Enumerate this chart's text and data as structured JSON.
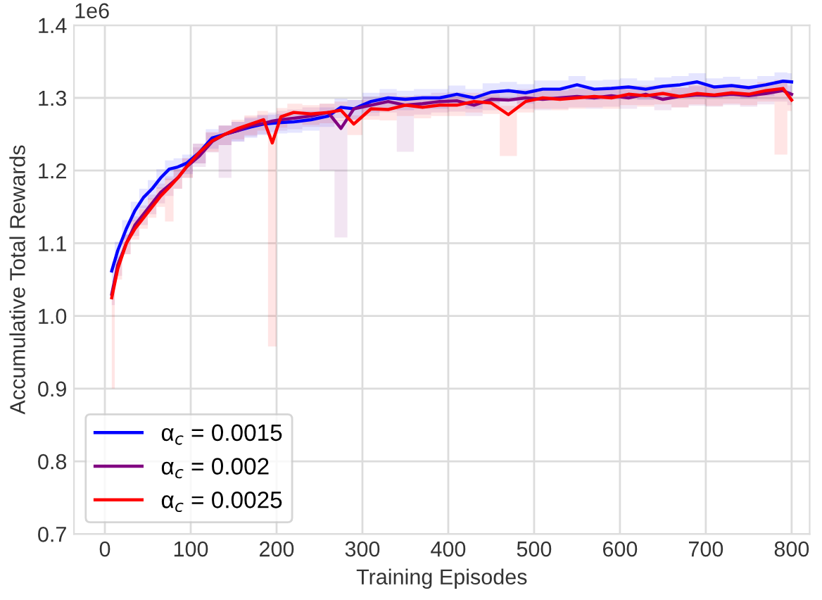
{
  "chart_data": {
    "type": "line",
    "xlabel": "Training Episodes",
    "ylabel": "Accumulative Total Rewards",
    "annotations": [
      "1e6"
    ],
    "x": [
      8,
      15,
      25,
      35,
      45,
      55,
      65,
      75,
      85,
      95,
      110,
      125,
      140,
      155,
      170,
      185,
      195,
      205,
      220,
      240,
      260,
      275,
      290,
      310,
      330,
      350,
      370,
      390,
      410,
      430,
      450,
      470,
      490,
      510,
      530,
      550,
      570,
      590,
      610,
      630,
      650,
      670,
      690,
      710,
      730,
      750,
      770,
      790,
      800
    ],
    "xlim": [
      -36,
      821
    ],
    "xticks": [
      0,
      100,
      200,
      300,
      400,
      500,
      600,
      700,
      800
    ],
    "ylim": [
      0.7,
      1.4
    ],
    "yticks": [
      0.7,
      0.8,
      0.9,
      {
        "value": 1,
        "label": "1.0"
      },
      1.1,
      1.2,
      1.3,
      1.4
    ],
    "grid": true,
    "legend": "bottom left",
    "series": [
      {
        "name": "α$_{c}$ = 0.0015",
        "color": "#0000ff",
        "values": [
          1.062,
          1.09,
          1.12,
          1.145,
          1.163,
          1.175,
          1.19,
          1.202,
          1.205,
          1.21,
          1.225,
          1.245,
          1.25,
          1.255,
          1.26,
          1.264,
          1.265,
          1.266,
          1.267,
          1.27,
          1.275,
          1.287,
          1.285,
          1.295,
          1.3,
          1.298,
          1.3,
          1.3,
          1.305,
          1.3,
          1.308,
          1.31,
          1.307,
          1.312,
          1.312,
          1.318,
          1.312,
          1.313,
          1.315,
          1.312,
          1.316,
          1.318,
          1.322,
          1.315,
          1.317,
          1.314,
          1.318,
          1.323,
          1.322
        ],
        "upper": [
          1.074,
          1.102,
          1.132,
          1.157,
          1.175,
          1.187,
          1.202,
          1.214,
          1.217,
          1.222,
          1.237,
          1.257,
          1.262,
          1.267,
          1.272,
          1.276,
          1.277,
          1.278,
          1.279,
          1.282,
          1.287,
          1.299,
          1.297,
          1.307,
          1.312,
          1.31,
          1.312,
          1.312,
          1.317,
          1.312,
          1.32,
          1.322,
          1.319,
          1.324,
          1.324,
          1.33,
          1.324,
          1.325,
          1.327,
          1.324,
          1.328,
          1.33,
          1.334,
          1.327,
          1.329,
          1.326,
          1.33,
          1.335,
          1.334
        ],
        "lower": [
          1.047,
          1.075,
          1.105,
          1.13,
          1.148,
          1.16,
          1.175,
          1.187,
          1.19,
          1.195,
          1.21,
          1.23,
          1.235,
          1.24,
          1.245,
          1.249,
          1.25,
          1.251,
          1.252,
          1.255,
          1.26,
          1.272,
          1.27,
          1.28,
          1.285,
          1.283,
          1.285,
          1.285,
          1.29,
          1.285,
          1.293,
          1.295,
          1.292,
          1.297,
          1.297,
          1.303,
          1.297,
          1.298,
          1.3,
          1.297,
          1.301,
          1.303,
          1.307,
          1.3,
          1.302,
          1.299,
          1.303,
          1.308,
          1.307
        ]
      },
      {
        "name": "α$_{c}$ = 0.002",
        "color": "#800080",
        "values": [
          1.03,
          1.07,
          1.1,
          1.125,
          1.14,
          1.155,
          1.17,
          1.18,
          1.19,
          1.205,
          1.22,
          1.24,
          1.25,
          1.255,
          1.262,
          1.265,
          1.268,
          1.27,
          1.272,
          1.275,
          1.28,
          1.258,
          1.285,
          1.29,
          1.295,
          1.29,
          1.292,
          1.295,
          1.296,
          1.29,
          1.298,
          1.297,
          1.3,
          1.298,
          1.3,
          1.302,
          1.3,
          1.303,
          1.3,
          1.305,
          1.298,
          1.302,
          1.304,
          1.303,
          1.305,
          1.303,
          1.306,
          1.31,
          1.305
        ],
        "upper": [
          1.042,
          1.082,
          1.112,
          1.137,
          1.152,
          1.167,
          1.182,
          1.192,
          1.202,
          1.217,
          1.232,
          1.252,
          1.262,
          1.267,
          1.274,
          1.277,
          1.28,
          1.282,
          1.284,
          1.287,
          1.292,
          1.27,
          1.297,
          1.302,
          1.307,
          1.302,
          1.304,
          1.307,
          1.308,
          1.302,
          1.31,
          1.309,
          1.312,
          1.31,
          1.312,
          1.314,
          1.312,
          1.315,
          1.312,
          1.317,
          1.31,
          1.314,
          1.316,
          1.315,
          1.317,
          1.315,
          1.318,
          1.322,
          1.317
        ],
        "lower": [
          1.015,
          1.055,
          1.085,
          1.11,
          1.125,
          1.14,
          1.155,
          1.165,
          1.175,
          1.19,
          1.205,
          1.225,
          1.19,
          1.24,
          1.247,
          1.25,
          1.253,
          1.255,
          1.257,
          1.26,
          1.2,
          1.108,
          1.27,
          1.275,
          1.28,
          1.226,
          1.277,
          1.28,
          1.281,
          1.275,
          1.283,
          1.282,
          1.285,
          1.283,
          1.285,
          1.287,
          1.285,
          1.288,
          1.285,
          1.29,
          1.283,
          1.287,
          1.289,
          1.288,
          1.29,
          1.288,
          1.291,
          1.295,
          1.29
        ]
      },
      {
        "name": "α$_{c}$ = 0.0025",
        "color": "#ff0000",
        "values": [
          1.025,
          1.065,
          1.1,
          1.12,
          1.135,
          1.15,
          1.165,
          1.177,
          1.19,
          1.205,
          1.225,
          1.241,
          1.25,
          1.258,
          1.264,
          1.27,
          1.238,
          1.274,
          1.28,
          1.278,
          1.28,
          1.283,
          1.264,
          1.285,
          1.284,
          1.29,
          1.287,
          1.29,
          1.29,
          1.295,
          1.293,
          1.277,
          1.295,
          1.3,
          1.298,
          1.3,
          1.302,
          1.3,
          1.305,
          1.303,
          1.306,
          1.302,
          1.306,
          1.304,
          1.307,
          1.305,
          1.31,
          1.313,
          1.297
        ],
        "upper": [
          1.037,
          1.077,
          1.112,
          1.132,
          1.147,
          1.162,
          1.177,
          1.189,
          1.202,
          1.217,
          1.237,
          1.253,
          1.262,
          1.27,
          1.276,
          1.282,
          1.25,
          1.286,
          1.292,
          1.29,
          1.292,
          1.295,
          1.276,
          1.297,
          1.296,
          1.302,
          1.299,
          1.302,
          1.302,
          1.307,
          1.305,
          1.289,
          1.307,
          1.312,
          1.31,
          1.312,
          1.314,
          1.312,
          1.317,
          1.315,
          1.318,
          1.314,
          1.318,
          1.316,
          1.319,
          1.317,
          1.322,
          1.325,
          1.309
        ],
        "lower": [
          0.9,
          1.05,
          1.085,
          1.105,
          1.12,
          1.135,
          1.15,
          1.13,
          1.175,
          1.19,
          1.21,
          1.226,
          1.235,
          1.243,
          1.249,
          1.255,
          0.958,
          1.259,
          1.265,
          1.263,
          1.265,
          1.268,
          1.249,
          1.27,
          1.269,
          1.275,
          1.272,
          1.275,
          1.275,
          1.28,
          1.278,
          1.22,
          1.28,
          1.285,
          1.283,
          1.285,
          1.287,
          1.285,
          1.29,
          1.288,
          1.291,
          1.287,
          1.291,
          1.289,
          1.292,
          1.29,
          1.295,
          1.222,
          1.282
        ]
      }
    ]
  }
}
